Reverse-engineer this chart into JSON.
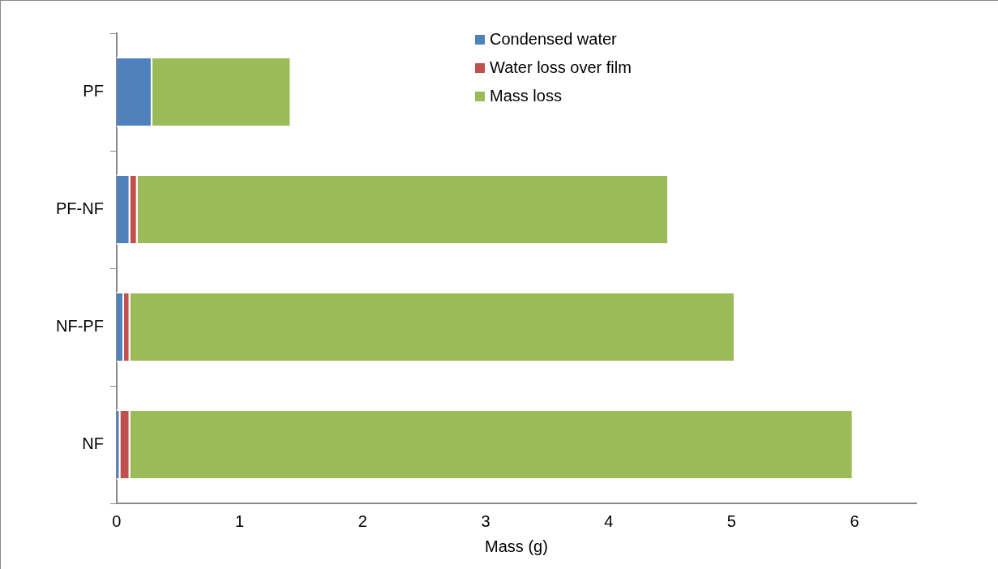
{
  "chart_data": {
    "type": "bar",
    "orientation": "horizontal",
    "stacked": true,
    "xlabel": "Mass (g)",
    "categories": [
      "PF",
      "PF-NF",
      "NF-PF",
      "NF"
    ],
    "series": [
      {
        "name": "Condensed water",
        "color": "#4f81bd",
        "values": [
          0.29,
          0.11,
          0.06,
          0.03
        ]
      },
      {
        "name": "Water loss over film",
        "color": "#c0504d",
        "values": [
          0,
          0.06,
          0.05,
          0.08
        ]
      },
      {
        "name": "Mass loss",
        "color": "#9bbb59",
        "values": [
          1.13,
          4.32,
          4.92,
          5.88
        ]
      }
    ],
    "xlim": [
      0,
      6.5
    ],
    "xticks": [
      0,
      1,
      2,
      3,
      4,
      5,
      6
    ],
    "grid": false,
    "legend": "top right"
  }
}
